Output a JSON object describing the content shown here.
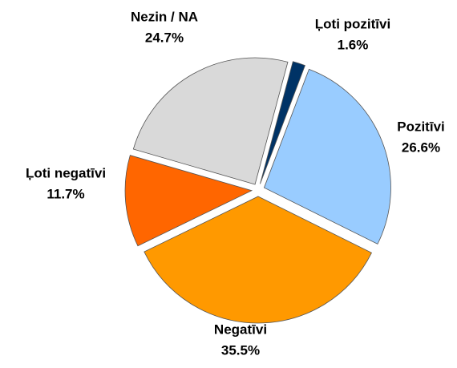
{
  "chart_data": {
    "type": "pie",
    "categories": [
      "Ļoti pozitīvi",
      "Pozitīvi",
      "Negatīvi",
      "Ļoti negatīvi",
      "Nezin / NA"
    ],
    "values": [
      1.6,
      26.6,
      35.5,
      11.7,
      24.7
    ],
    "value_labels": [
      "1.6%",
      "26.6%",
      "35.5%",
      "11.7%",
      "24.7%"
    ],
    "colors": [
      "#003366",
      "#99ccff",
      "#ff9900",
      "#ff6600",
      "#d9d9d9"
    ]
  }
}
